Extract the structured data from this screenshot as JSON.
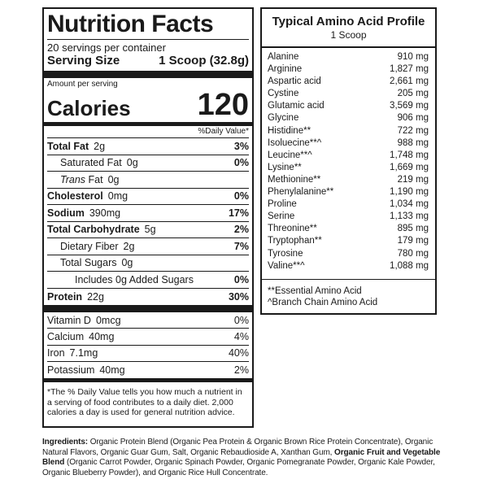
{
  "nutrition_facts": {
    "title": "Nutrition Facts",
    "servings": "20 servings per container",
    "serving_size_label": "Serving Size",
    "serving_size_value": "1 Scoop (32.8g)",
    "amount_per_serving": "Amount per serving",
    "calories_label": "Calories",
    "calories_value": "120",
    "daily_value_header": "%Daily Value*",
    "total_fat": {
      "label": "Total Fat",
      "amount": "2g",
      "dv": "3%"
    },
    "saturated_fat": {
      "label": "Saturated Fat",
      "amount": "0g",
      "dv": "0%"
    },
    "trans_fat": {
      "label_italic": "Trans",
      "label": " Fat",
      "amount": "0g"
    },
    "cholesterol": {
      "label": "Cholesterol",
      "amount": "0mg",
      "dv": "0%"
    },
    "sodium": {
      "label": "Sodium",
      "amount": "390mg",
      "dv": "17%"
    },
    "total_carbohydrate": {
      "label": "Total Carbohydrate",
      "amount": "5g",
      "dv": "2%"
    },
    "dietary_fiber": {
      "label": "Dietary Fiber",
      "amount": "2g",
      "dv": "7%"
    },
    "total_sugars": {
      "label": "Total Sugars",
      "amount": "0g"
    },
    "added_sugars": {
      "label": "Includes 0g Added Sugars",
      "dv": "0%"
    },
    "protein": {
      "label": "Protein",
      "amount": "22g",
      "dv": "30%"
    },
    "vitamin_d": {
      "label": "Vitamin D",
      "amount": "0mcg",
      "dv": "0%"
    },
    "calcium": {
      "label": "Calcium",
      "amount": "40mg",
      "dv": "4%"
    },
    "iron": {
      "label": "Iron",
      "amount": "7.1mg",
      "dv": "40%"
    },
    "potassium": {
      "label": "Potassium",
      "amount": "40mg",
      "dv": "2%"
    },
    "footnote": "*The % Daily Value tells you how much a nutrient in a serving of food contributes to a daily diet. 2,000 calories a day is used for general nutrition advice."
  },
  "amino_profile": {
    "title": "Typical Amino Acid Profile",
    "subtitle": "1 Scoop",
    "rows": [
      {
        "name": "Alanine",
        "value": "910 mg"
      },
      {
        "name": "Arginine",
        "value": "1,827 mg"
      },
      {
        "name": "Aspartic acid",
        "value": "2,661 mg"
      },
      {
        "name": "Cystine",
        "value": "205 mg"
      },
      {
        "name": "Glutamic acid",
        "value": "3,569 mg"
      },
      {
        "name": "Glycine",
        "value": "906 mg"
      },
      {
        "name": "Histidine**",
        "value": "722 mg"
      },
      {
        "name": "Isoluecine**^",
        "value": "988 mg"
      },
      {
        "name": "Leucine**^",
        "value": "1,748 mg"
      },
      {
        "name": "Lysine**",
        "value": "1,669 mg"
      },
      {
        "name": "Methionine**",
        "value": "219 mg"
      },
      {
        "name": "Phenylalanine**",
        "value": "1,190 mg"
      },
      {
        "name": "Proline",
        "value": "1,034 mg"
      },
      {
        "name": "Serine",
        "value": "1,133 mg"
      },
      {
        "name": "Threonine**",
        "value": "895 mg"
      },
      {
        "name": "Tryptophan**",
        "value": "179 mg"
      },
      {
        "name": "Tyrosine",
        "value": "780 mg"
      },
      {
        "name": "Valine**^",
        "value": "1,088 mg"
      }
    ],
    "note1": "**Essential Amino Acid",
    "note2": "^Branch Chain Amino Acid"
  },
  "ingredients": {
    "label": "Ingredients:",
    "text1": " Organic Protein Blend (Organic Pea Protein & Organic Brown Rice Protein Concentrate), Organic Natural Flavors, Organic Guar Gum, Salt, Organic Rebaudioside A, Xanthan Gum, ",
    "bold2": "Organic Fruit and Vegetable Blend",
    "text2": " (Organic Carrot Powder, Organic Spinach Powder, Organic Pomegranate Powder, Organic Kale Powder, Organic Blueberry Powder), and Organic Rice Hull Concentrate."
  }
}
